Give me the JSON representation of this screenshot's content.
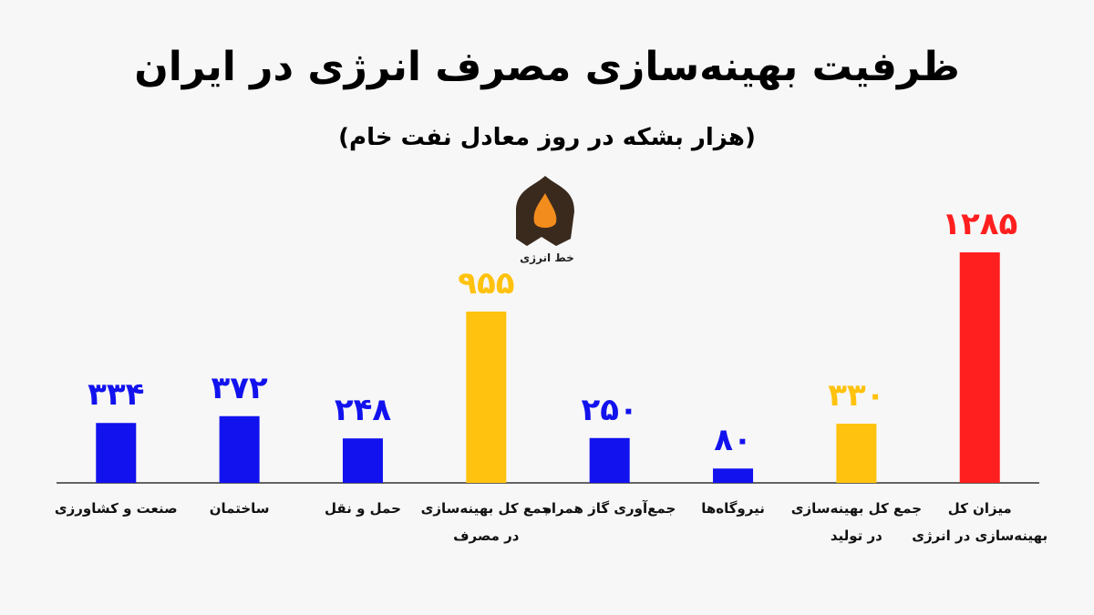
{
  "chart_data": {
    "type": "bar",
    "title": "ظرفیت بهینه‌سازی مصرف انرژی در ایران",
    "subtitle": "(هزار بشکه در روز معادل نفت خام)",
    "logo_text": "خط انرژی",
    "categories": [
      "صنعت و کشاورزی",
      "ساختمان",
      "حمل و نقل",
      "جمع کل بهینه‌سازی در مصرف",
      "جمع‌آوری گاز همراه",
      "نیروگاه‌ها",
      "جمع کل بهینه‌سازی در تولید",
      "میزان کل بهینه‌سازی در انرژی"
    ],
    "values": [
      334,
      372,
      248,
      955,
      250,
      80,
      330,
      1285
    ],
    "value_labels": [
      "۳۳۴",
      "۳۷۲",
      "۲۴۸",
      "۹۵۵",
      "۲۵۰",
      "۸۰",
      "۳۳۰",
      "۱۲۸۵"
    ],
    "colors": [
      "#1212ee",
      "#1212ee",
      "#1212ee",
      "#ffc20e",
      "#1212ee",
      "#1212ee",
      "#ffc20e",
      "#ff1f1f"
    ],
    "grid": false
  }
}
